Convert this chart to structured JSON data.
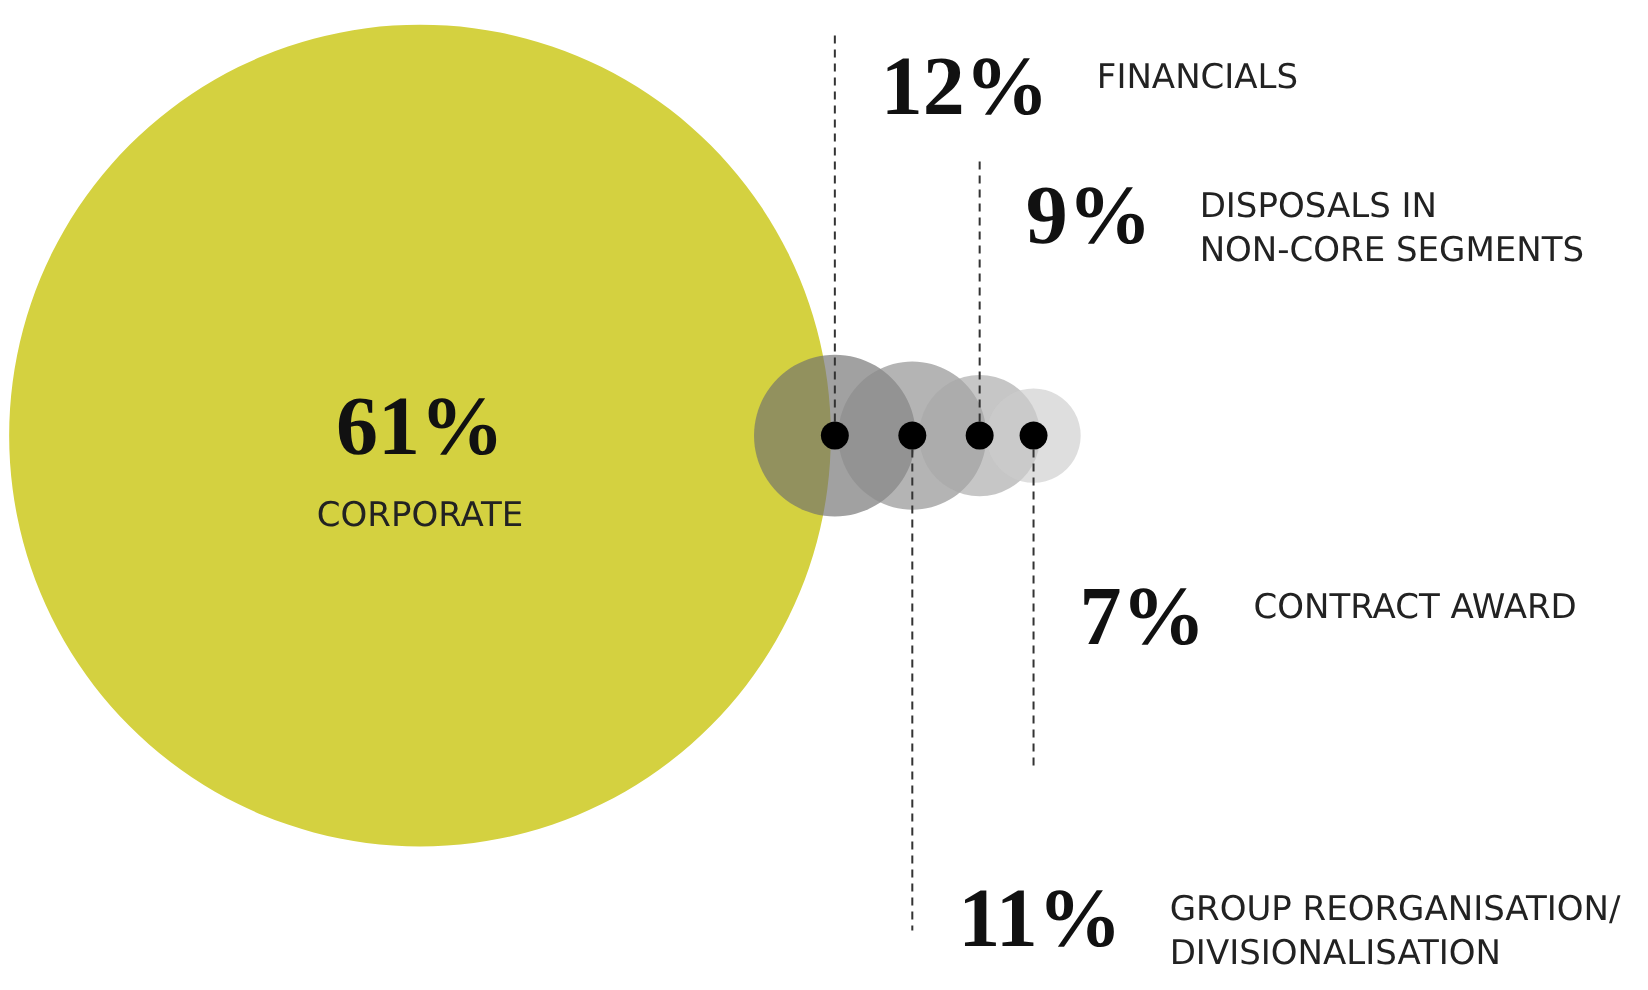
{
  "chart_data": {
    "type": "other",
    "categories": [
      "CORPORATE",
      "FINANCIALS",
      "GROUP REORGANISATION/\nDIVISIONALISATION",
      "DISPOSALS IN\nNON-CORE SEGMENTS",
      "CONTRACT AWARD"
    ],
    "values": [
      61,
      12,
      11,
      9,
      7
    ],
    "value_labels": [
      "61%",
      "12%",
      "11%",
      "9%",
      "7%"
    ],
    "colors": [
      "#d4d140",
      "#6f6f6f",
      "#8c8c8c",
      "#a8a8a8",
      "#cdcdcd"
    ]
  }
}
